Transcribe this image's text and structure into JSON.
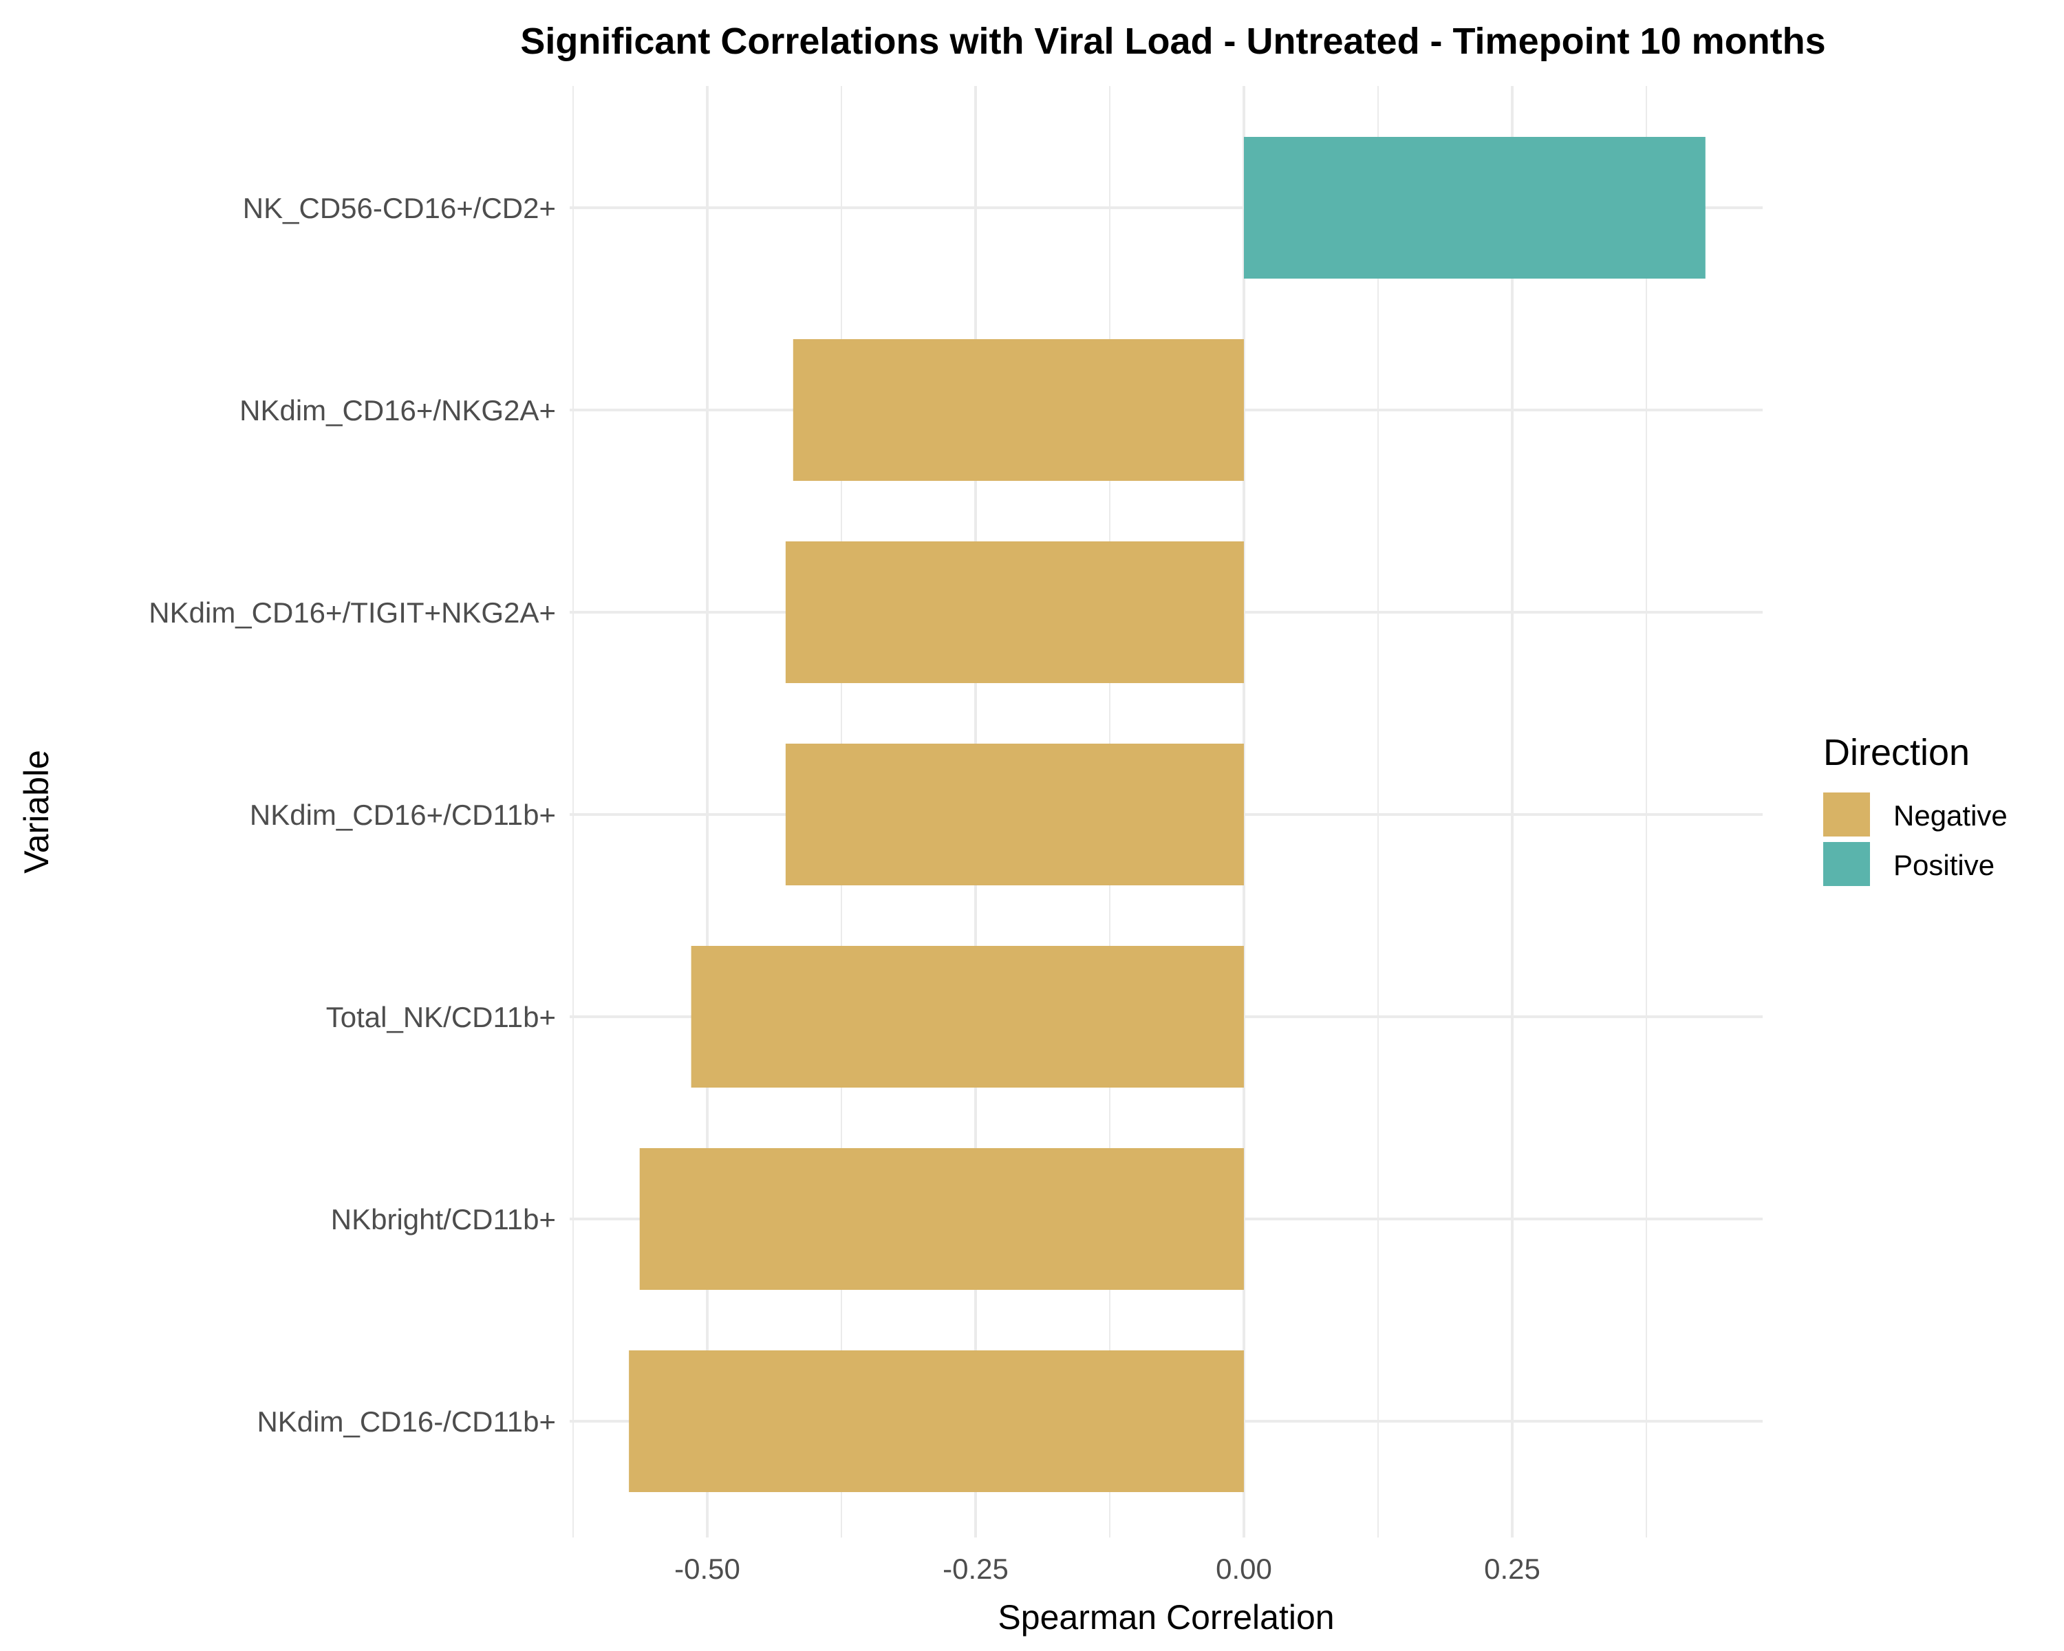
{
  "chart_data": {
    "type": "bar",
    "orientation": "horizontal",
    "title": "Significant Correlations with Viral Load - Untreated - Timepoint 10 months",
    "xlabel": "Spearman Correlation",
    "ylabel": "Variable",
    "xlim": [
      -0.62,
      0.48
    ],
    "xticks": [
      {
        "value": -0.5,
        "label": "-0.50"
      },
      {
        "value": -0.25,
        "label": "-0.25"
      },
      {
        "value": 0.0,
        "label": "0.00"
      },
      {
        "value": 0.25,
        "label": "0.25"
      }
    ],
    "grid": true,
    "legend": {
      "title": "Direction",
      "placement": "right",
      "entries": [
        {
          "label": "Negative",
          "color": "#d8b365"
        },
        {
          "label": "Positive",
          "color": "#5ab4ac"
        }
      ]
    },
    "categories": [
      "NK_CD56-CD16+/CD2+",
      "NKdim_CD16+/NKG2A+",
      "NKdim_CD16+/TIGIT+NKG2A+",
      "NKdim_CD16+/CD11b+",
      "Total_NK/CD11b+",
      "NKbright/CD11b+",
      "NKdim_CD16-/CD11b+"
    ],
    "values": [
      0.43,
      -0.42,
      -0.427,
      -0.427,
      -0.515,
      -0.563,
      -0.573
    ],
    "direction": [
      "Positive",
      "Negative",
      "Negative",
      "Negative",
      "Negative",
      "Negative",
      "Negative"
    ]
  }
}
